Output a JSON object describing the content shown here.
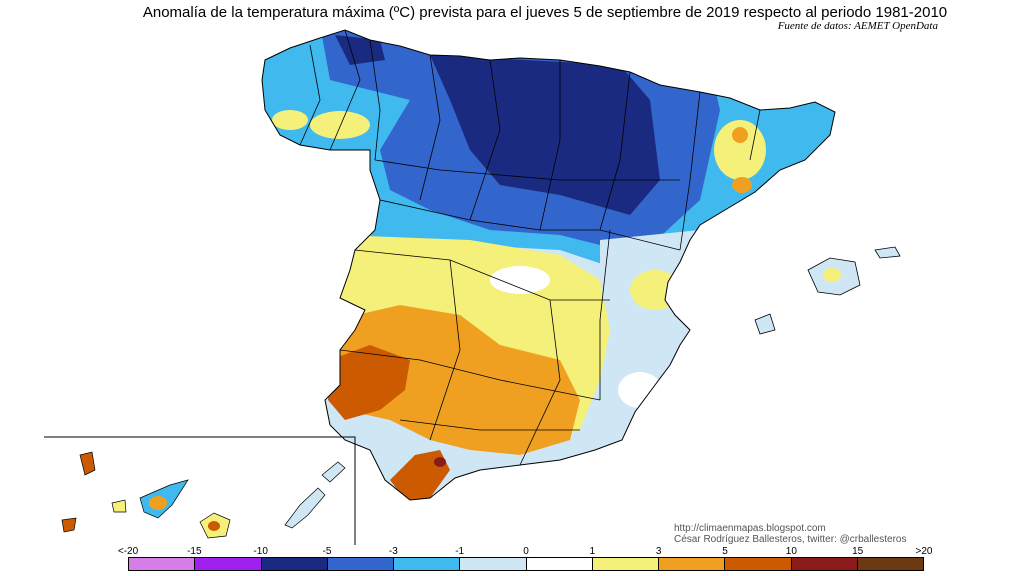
{
  "header": {
    "title": "Anomalía de la temperatura máxima (ºC) prevista para el jueves 5 de septiembre de 2019 respecto al periodo 1981-2010",
    "source": "Fuente de datos: AEMET OpenData"
  },
  "credits": {
    "line1": "http://climaenmapas.blogspot.com",
    "line2": "César Rodríguez Ballesteros, twitter: @crballesteros"
  },
  "legend": {
    "labels": [
      "<-20",
      "-15",
      "-10",
      "-5",
      "-3",
      "-1",
      "0",
      "1",
      "3",
      "5",
      "10",
      "15",
      ">20"
    ],
    "colors": [
      "#d67de8",
      "#a020f0",
      "#1a2a80",
      "#3366cc",
      "#3fb9ee",
      "#cfe6f5",
      "#ffffff",
      "#f5f07a",
      "#f0a020",
      "#cc5a00",
      "#8b1a1a",
      "#6b3a12"
    ]
  }
}
